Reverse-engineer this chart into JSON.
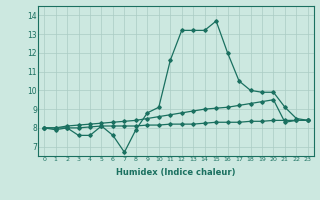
{
  "xlabel": "Humidex (Indice chaleur)",
  "background_color": "#cce8e0",
  "line_color": "#1a7060",
  "grid_color": "#aaccc4",
  "xlim": [
    -0.5,
    23.5
  ],
  "ylim": [
    6.5,
    14.5
  ],
  "yticks": [
    7,
    8,
    9,
    10,
    11,
    12,
    13,
    14
  ],
  "xticks": [
    0,
    1,
    2,
    3,
    4,
    5,
    6,
    7,
    8,
    9,
    10,
    11,
    12,
    13,
    14,
    15,
    16,
    17,
    18,
    19,
    20,
    21,
    22,
    23
  ],
  "series1_x": [
    0,
    1,
    2,
    3,
    4,
    5,
    6,
    7,
    8,
    9,
    10,
    11,
    12,
    13,
    14,
    15,
    16,
    17,
    18,
    19,
    20,
    21,
    22,
    23
  ],
  "series1_y": [
    8.0,
    7.9,
    8.0,
    7.6,
    7.6,
    8.1,
    7.6,
    6.7,
    7.9,
    8.8,
    9.1,
    11.6,
    13.2,
    13.2,
    13.2,
    13.7,
    12.0,
    10.5,
    10.0,
    9.9,
    9.9,
    9.1,
    8.5,
    8.4
  ],
  "series2_x": [
    0,
    1,
    2,
    3,
    4,
    5,
    6,
    7,
    8,
    9,
    10,
    11,
    12,
    13,
    14,
    15,
    16,
    17,
    18,
    19,
    20,
    21,
    22,
    23
  ],
  "series2_y": [
    8.0,
    8.0,
    8.1,
    8.15,
    8.2,
    8.25,
    8.3,
    8.35,
    8.4,
    8.5,
    8.6,
    8.7,
    8.8,
    8.9,
    9.0,
    9.05,
    9.1,
    9.2,
    9.3,
    9.4,
    9.5,
    8.3,
    8.4,
    8.4
  ],
  "series3_x": [
    0,
    1,
    2,
    3,
    4,
    5,
    6,
    7,
    8,
    9,
    10,
    11,
    12,
    13,
    14,
    15,
    16,
    17,
    18,
    19,
    20,
    21,
    22,
    23
  ],
  "series3_y": [
    8.0,
    8.0,
    8.0,
    8.0,
    8.05,
    8.1,
    8.1,
    8.1,
    8.1,
    8.15,
    8.15,
    8.2,
    8.2,
    8.2,
    8.25,
    8.3,
    8.3,
    8.3,
    8.35,
    8.35,
    8.4,
    8.4,
    8.4,
    8.4
  ]
}
